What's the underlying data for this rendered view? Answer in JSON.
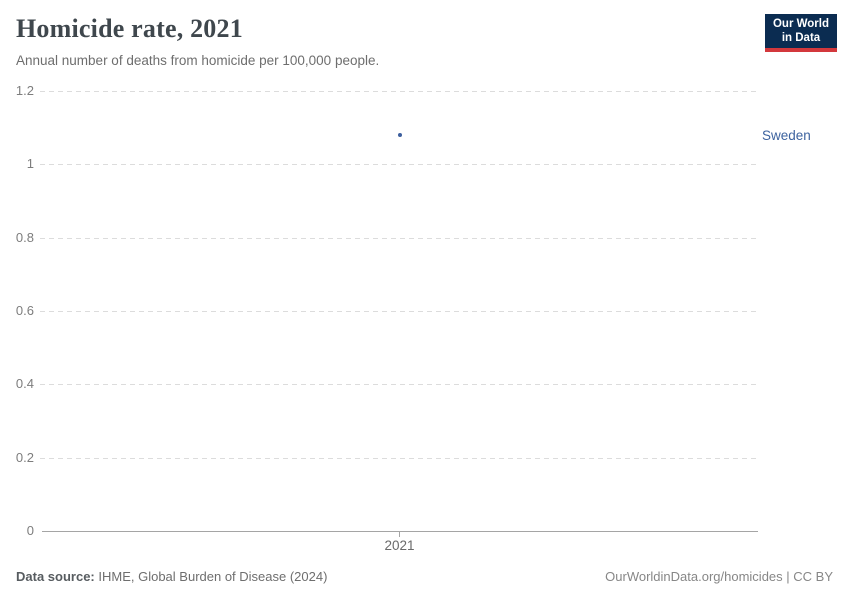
{
  "header": {
    "title": "Homicide rate, 2021",
    "subtitle": "Annual number of deaths from homicide per 100,000 people."
  },
  "logo": {
    "line1": "Our World",
    "line2": "in Data",
    "bg_color": "#0b2c51",
    "accent_color": "#d3383c"
  },
  "chart_data": {
    "type": "scatter",
    "title": "Homicide rate, 2021",
    "xlabel": "",
    "ylabel": "",
    "x": [
      2021
    ],
    "xtick_labels": [
      "2021"
    ],
    "series": [
      {
        "name": "Sweden",
        "values": [
          1.08
        ],
        "color": "#3d5f9e",
        "label_color": "#3d639f"
      }
    ],
    "ylim": [
      0,
      1.2
    ],
    "yticks": [
      0,
      0.2,
      0.4,
      0.6,
      0.8,
      1,
      1.2
    ],
    "ytick_labels": [
      "0",
      "0.2",
      "0.4",
      "0.6",
      "0.8",
      "1",
      "1.2"
    ],
    "grid": "horizontal-dashed",
    "legend_position": "right-of-point"
  },
  "footer": {
    "source_label": "Data source:",
    "source_text": "IHME, Global Burden of Disease (2024)",
    "right_text": "OurWorldinData.org/homicides | CC BY"
  }
}
